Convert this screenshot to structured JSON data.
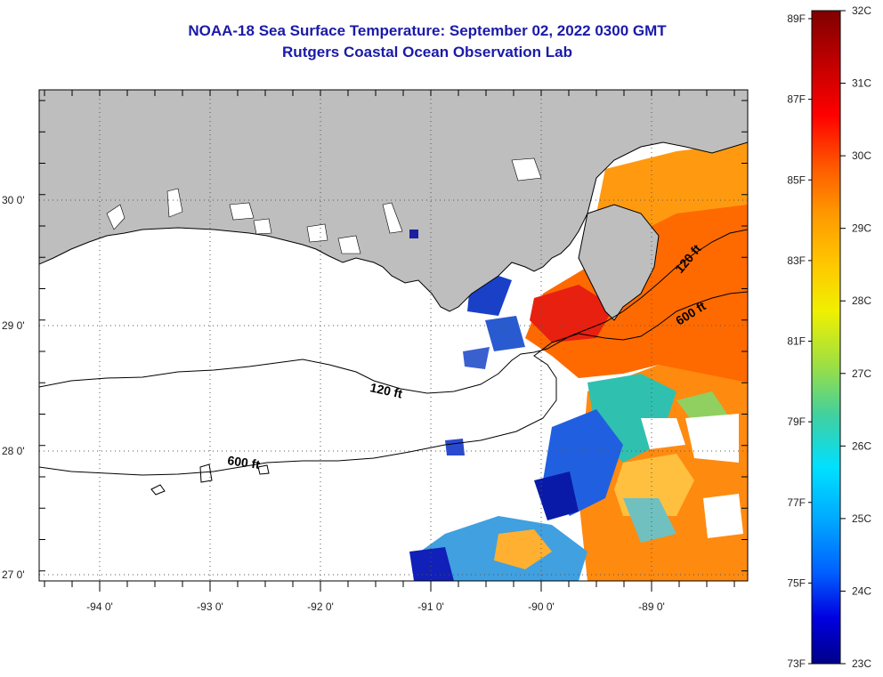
{
  "title": "NOAA-18 Sea Surface Temperature:  September 02, 2022 0300 GMT",
  "subtitle": "Rutgers Coastal Ocean Observation Lab",
  "lon_labels": [
    "-94 0'",
    "-93 0'",
    "-92 0'",
    "-91 0'",
    "-90 0'",
    "-89 0'"
  ],
  "lat_labels": [
    "30 0'",
    "29 0'",
    "28 0'",
    "27 0'"
  ],
  "contour_labels": {
    "west_120": "120 ft",
    "west_600": "600 ft",
    "east_120": "120 ft",
    "east_600": "600 ft"
  },
  "colorbar": {
    "f_labels": [
      "89F",
      "87F",
      "85F",
      "83F",
      "81F",
      "79F",
      "77F",
      "75F",
      "73F"
    ],
    "c_labels": [
      "32C",
      "31C",
      "30C",
      "29C",
      "28C",
      "27C",
      "26C",
      "25C",
      "24C",
      "23C"
    ],
    "stops": [
      "#800000",
      "#c00000",
      "#ff0000",
      "#ff5a00",
      "#ff9800",
      "#ffc800",
      "#f0f000",
      "#a0e040",
      "#40d0a0",
      "#00e0ff",
      "#00a8ff",
      "#0060ff",
      "#0000e0",
      "#000088"
    ]
  },
  "colors": {
    "land": "#bebebe",
    "title": "#1a1aa8"
  }
}
